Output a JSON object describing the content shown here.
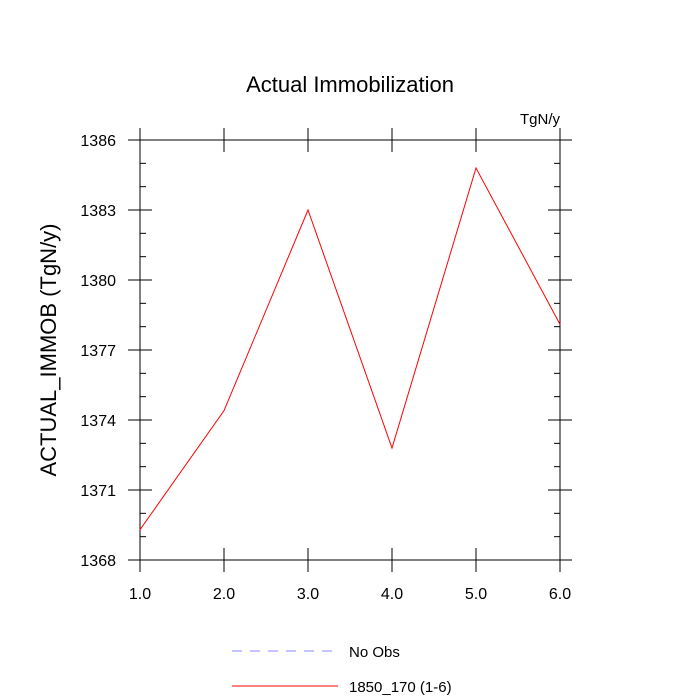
{
  "chart_data": {
    "type": "line",
    "title": "Actual Immobilization",
    "units_label": "TgN/y",
    "xlabel": "",
    "ylabel": "ACTUAL_IMMOB  (TgN/y)",
    "xlim": [
      1.0,
      6.0
    ],
    "ylim": [
      1368,
      1386
    ],
    "x_ticks": [
      1,
      2,
      3,
      4,
      5,
      6
    ],
    "x_tick_labels": [
      "1.0",
      "2.0",
      "3.0",
      "4.0",
      "5.0",
      "6.0"
    ],
    "y_ticks": [
      1368,
      1371,
      1374,
      1377,
      1380,
      1383,
      1386
    ],
    "y_tick_labels": [
      "1368",
      "1371",
      "1374",
      "1377",
      "1380",
      "1383",
      "1386"
    ],
    "grid": false,
    "legend_position": "bottom",
    "series": [
      {
        "name": "No Obs",
        "color": "#8888ff",
        "dash": true,
        "x": [],
        "y": []
      },
      {
        "name": "1850_170 (1-6)",
        "color": "#ff0000",
        "dash": false,
        "x": [
          1,
          2,
          3,
          4,
          5,
          6
        ],
        "y": [
          1369.3,
          1374.4,
          1383.0,
          1372.8,
          1384.8,
          1378.1
        ]
      }
    ]
  }
}
